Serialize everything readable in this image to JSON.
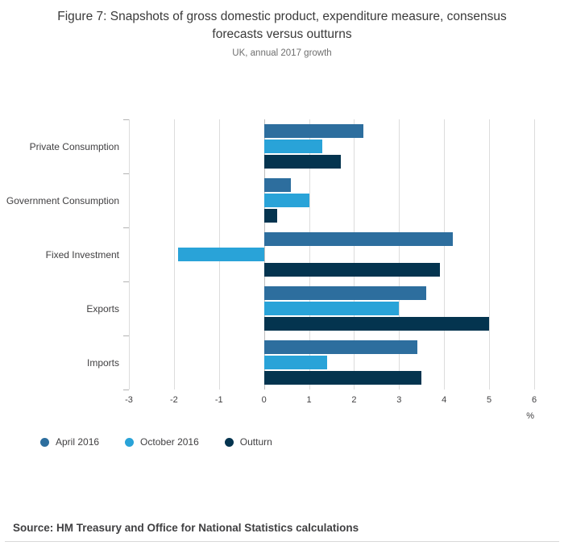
{
  "title": "Figure 7: Snapshots of gross domestic product, expenditure measure, consensus forecasts versus outturns",
  "subtitle": "UK, annual 2017 growth",
  "source": "Source: HM Treasury and Office for National Statistics calculations",
  "chart_data": {
    "type": "bar",
    "orientation": "horizontal",
    "title": "Figure 7: Snapshots of gross domestic product, expenditure measure, consensus forecasts versus outturns",
    "subtitle": "UK, annual 2017 growth",
    "categories": [
      "Private Consumption",
      "Government Consumption",
      "Fixed Investment",
      "Exports",
      "Imports"
    ],
    "series": [
      {
        "name": "April 2016",
        "color": "#2d6e9e",
        "values": [
          2.2,
          0.6,
          4.2,
          3.6,
          3.4
        ]
      },
      {
        "name": "October 2016",
        "color": "#29a3d8",
        "values": [
          1.3,
          1.0,
          -1.9,
          3.0,
          1.4
        ]
      },
      {
        "name": "Outturn",
        "color": "#04344f",
        "values": [
          1.7,
          0.3,
          3.9,
          5.0,
          3.5
        ]
      }
    ],
    "xlabel": "%",
    "xlim": [
      -3,
      6
    ],
    "xticks": [
      -3,
      -2,
      -1,
      0,
      1,
      2,
      3,
      4,
      5,
      6
    ],
    "grid": true,
    "legend_position": "bottom"
  }
}
